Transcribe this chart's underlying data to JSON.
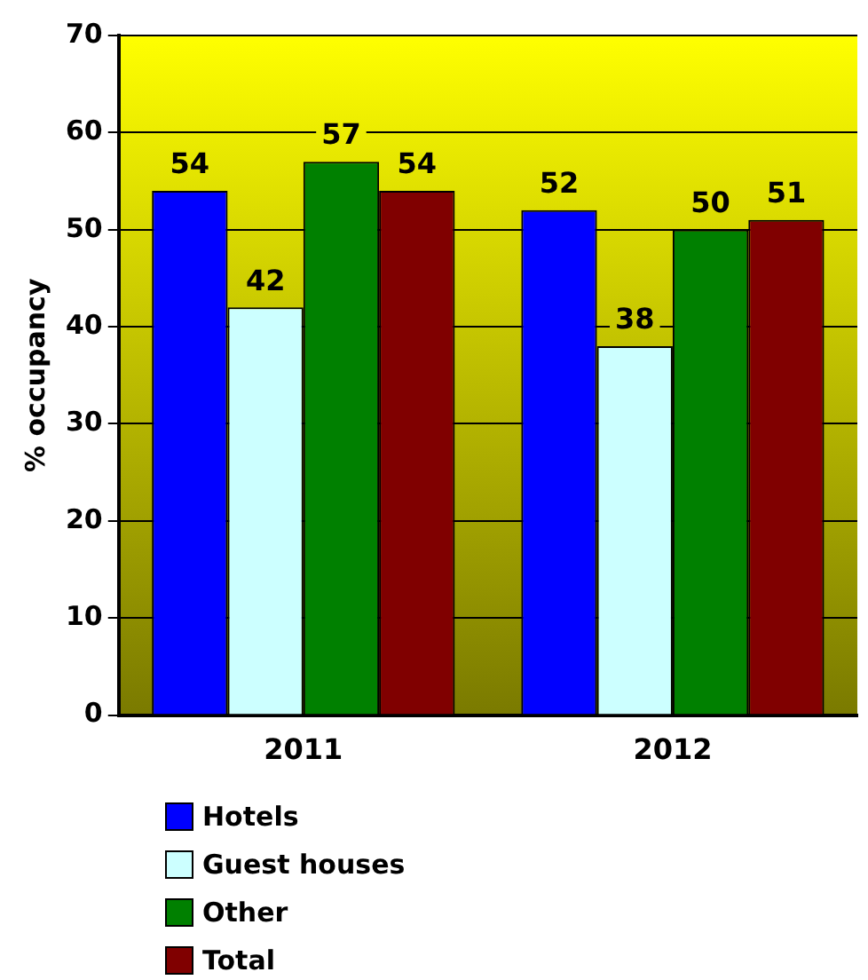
{
  "chart_data": {
    "type": "bar",
    "ylabel": "% occupancy",
    "categories": [
      "2011",
      "2012"
    ],
    "series": [
      {
        "name": "Hotels",
        "color": "#0000ff",
        "values": [
          54,
          52
        ]
      },
      {
        "name": "Guest houses",
        "color": "#ccffff",
        "values": [
          42,
          38
        ]
      },
      {
        "name": "Other",
        "color": "#008000",
        "values": [
          57,
          50
        ]
      },
      {
        "name": "Total",
        "color": "#800000",
        "values": [
          54,
          51
        ]
      }
    ],
    "ylim": [
      0,
      70
    ],
    "yticks": [
      0,
      10,
      20,
      30,
      40,
      50,
      60,
      70
    ],
    "grid": "y",
    "legend": "bottom",
    "data_labels": true
  }
}
